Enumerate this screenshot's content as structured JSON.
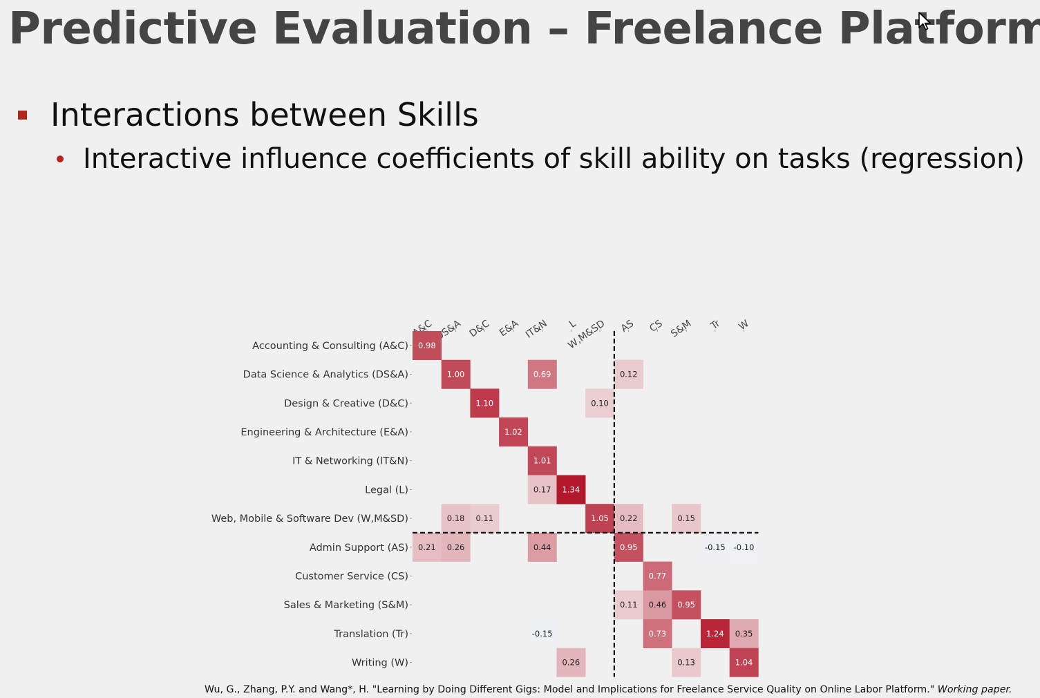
{
  "slide": {
    "title": "Predictive Evaluation – Freelance Platform",
    "bullet_1": "Interactions between Skills",
    "bullet_2": "Interactive influence coefficients of skill ability on tasks (regression)",
    "citation_main": "Wu, G., Zhang, P.Y. and Wang*, H. \"Learning by Doing Different Gigs: Model and Implications for Freelance Service Quality on Online Labor Platform.\"",
    "citation_italic": "Working paper."
  },
  "colors": {
    "accent": "#b3261e",
    "positive_max": "#b2182b",
    "negative": "#dfe3ee",
    "divider": "#111111"
  },
  "chart_data": {
    "type": "heatmap",
    "columns": [
      "A&C",
      "DS&A",
      "D&C",
      "E&A",
      "IT&N",
      "L",
      "W,M&SD",
      "AS",
      "CS",
      "S&M",
      "Tr",
      "W"
    ],
    "rows": [
      "Accounting & Consulting (A&C)",
      "Data Science & Analytics (DS&A)",
      "Design & Creative (D&C)",
      "Engineering & Architecture (E&A)",
      "IT & Networking (IT&N)",
      "Legal (L)",
      "Web, Mobile & Software Dev (W,M&SD)",
      "Admin Support (AS)",
      "Customer Service (CS)",
      "Sales & Marketing (S&M)",
      "Translation (Tr)",
      "Writing (W)"
    ],
    "values": [
      [
        0.98,
        null,
        null,
        null,
        null,
        null,
        null,
        null,
        null,
        null,
        null,
        null
      ],
      [
        null,
        1.0,
        null,
        null,
        0.69,
        null,
        null,
        0.12,
        null,
        null,
        null,
        null
      ],
      [
        null,
        null,
        1.1,
        null,
        null,
        null,
        0.1,
        null,
        null,
        null,
        null,
        null
      ],
      [
        null,
        null,
        null,
        1.02,
        null,
        null,
        null,
        null,
        null,
        null,
        null,
        null
      ],
      [
        null,
        null,
        null,
        null,
        1.01,
        null,
        null,
        null,
        null,
        null,
        null,
        null
      ],
      [
        null,
        null,
        null,
        null,
        0.17,
        1.34,
        null,
        null,
        null,
        null,
        null,
        null
      ],
      [
        null,
        0.18,
        0.11,
        null,
        null,
        null,
        1.05,
        0.22,
        null,
        0.15,
        null,
        null
      ],
      [
        0.21,
        0.26,
        null,
        null,
        0.44,
        null,
        null,
        0.95,
        null,
        null,
        -0.15,
        -0.1
      ],
      [
        null,
        null,
        null,
        null,
        null,
        null,
        null,
        null,
        0.77,
        null,
        null,
        null
      ],
      [
        null,
        null,
        null,
        null,
        null,
        null,
        null,
        0.11,
        0.46,
        0.95,
        null,
        null
      ],
      [
        null,
        null,
        null,
        null,
        -0.15,
        null,
        null,
        null,
        0.73,
        null,
        1.24,
        0.35
      ],
      [
        null,
        null,
        null,
        null,
        null,
        0.26,
        null,
        null,
        null,
        0.13,
        null,
        1.04
      ]
    ],
    "value_format": "2 decimals",
    "color_scale": "diverging blue-white-red",
    "divider_after_column": "W,M&SD",
    "divider_after_row": "Web, Mobile & Software Dev (W,M&SD)",
    "title": "",
    "xlabel": "",
    "ylabel": ""
  }
}
